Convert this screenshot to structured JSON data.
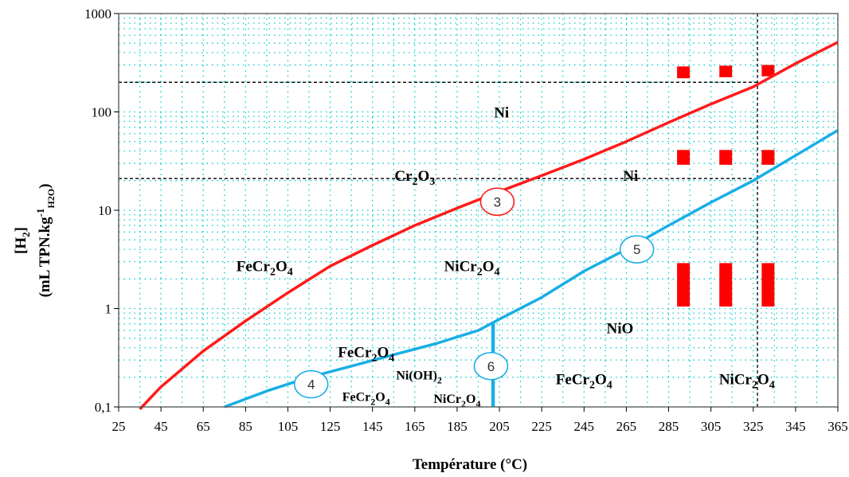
{
  "chart_data": {
    "type": "line",
    "xlabel": "Température (°C)",
    "ylabel_main": "[H",
    "ylabel_main_sub": "2",
    "ylabel_main_end": "]",
    "ylabel_units": "(mL TPN.kg",
    "ylabel_units_sup": "-1",
    "ylabel_units_sub": "H2O",
    "ylabel_units_end": ")",
    "y_scale": "log",
    "xlim": [
      25,
      365
    ],
    "ylim": [
      0.1,
      1000
    ],
    "grid": true,
    "grid_color": "#00cccc",
    "x_ticks": [
      "25",
      "45",
      "65",
      "85",
      "105",
      "125",
      "145",
      "165",
      "185",
      "205",
      "225",
      "245",
      "265",
      "285",
      "305",
      "325",
      "345",
      "365"
    ],
    "y_ticks": [
      {
        "value": 1000,
        "label": "1000"
      },
      {
        "value": 100,
        "label": "100"
      },
      {
        "value": 10,
        "label": "10"
      },
      {
        "value": 1,
        "label": "1"
      },
      {
        "value": 0.1,
        "label": "0,1"
      }
    ],
    "series": [
      {
        "color": "#ff1a1a",
        "x": [
          35,
          45,
          65,
          85,
          105,
          125,
          145,
          165,
          185,
          205,
          225,
          245,
          265,
          285,
          305,
          325,
          345,
          365
        ],
        "y": [
          0.095,
          0.16,
          0.37,
          0.75,
          1.45,
          2.7,
          4.4,
          7.0,
          10.5,
          15.5,
          22.5,
          33,
          50,
          78,
          120,
          180,
          310,
          510
        ]
      },
      {
        "color": "#1aaee6",
        "x": [
          75,
          95,
          115,
          135,
          155,
          175,
          195,
          205,
          225,
          245,
          265,
          285,
          305,
          325,
          345,
          365
        ],
        "y": [
          0.1,
          0.145,
          0.2,
          0.26,
          0.34,
          0.44,
          0.6,
          0.78,
          1.3,
          2.4,
          4.0,
          7.0,
          12,
          20,
          36,
          65
        ]
      }
    ],
    "vertical_segment": {
      "color": "#1aaee6",
      "x": 202,
      "y_from": 0.1,
      "y_to": 0.72
    },
    "dashed_lines": [
      {
        "kind": "h",
        "y": 200,
        "x_from": 25,
        "x_to": 327
      },
      {
        "kind": "h",
        "y": 21,
        "x_from": 25,
        "x_to": 327
      },
      {
        "kind": "v",
        "x": 327,
        "y_from": 0.1,
        "y_to": 1000
      }
    ],
    "markers": [
      {
        "x": 292,
        "y_from": 220,
        "y_to": 290
      },
      {
        "x": 312,
        "y_from": 225,
        "y_to": 295
      },
      {
        "x": 332,
        "y_from": 230,
        "y_to": 300
      },
      {
        "x": 292,
        "y_from": 29,
        "y_to": 41
      },
      {
        "x": 312,
        "y_from": 29,
        "y_to": 41
      },
      {
        "x": 332,
        "y_from": 29,
        "y_to": 41
      },
      {
        "x": 292,
        "y_from": 1.05,
        "y_to": 2.9
      },
      {
        "x": 312,
        "y_from": 1.05,
        "y_to": 2.9
      },
      {
        "x": 332,
        "y_from": 1.05,
        "y_to": 2.9
      }
    ],
    "marker_color": "#ff0000",
    "circles": [
      {
        "label": "3",
        "x": 204,
        "y": 12.2,
        "color": "#ff1a1a"
      },
      {
        "label": "4",
        "x": 116,
        "y": 0.17,
        "color": "#1aaee6"
      },
      {
        "label": "5",
        "x": 270,
        "y": 4.0,
        "color": "#1aaee6"
      },
      {
        "label": "6",
        "x": 201,
        "y": 0.26,
        "color": "#1aaee6"
      }
    ],
    "regions": [
      {
        "x": 206,
        "y": 88,
        "size": "lg",
        "parts": [
          {
            "t": "Ni"
          }
        ]
      },
      {
        "x": 165,
        "y": 20,
        "size": "lg",
        "parts": [
          {
            "t": "Cr"
          },
          {
            "t": "2",
            "s": "sub"
          },
          {
            "t": "O"
          },
          {
            "t": "3",
            "s": "sub"
          }
        ]
      },
      {
        "x": 267,
        "y": 20,
        "size": "lg",
        "parts": [
          {
            "t": "Ni"
          }
        ]
      },
      {
        "x": 94,
        "y": 2.4,
        "size": "lg",
        "parts": [
          {
            "t": "FeCr"
          },
          {
            "t": "2",
            "s": "sub"
          },
          {
            "t": "O"
          },
          {
            "t": "4",
            "s": "sub"
          }
        ]
      },
      {
        "x": 192,
        "y": 2.4,
        "size": "lg",
        "parts": [
          {
            "t": "NiCr"
          },
          {
            "t": "2",
            "s": "sub"
          },
          {
            "t": "O"
          },
          {
            "t": "4",
            "s": "sub"
          }
        ]
      },
      {
        "x": 262,
        "y": 0.56,
        "size": "lg",
        "parts": [
          {
            "t": "NiO"
          }
        ]
      },
      {
        "x": 142,
        "y": 0.32,
        "size": "lg",
        "parts": [
          {
            "t": "FeCr"
          },
          {
            "t": "2",
            "s": "sub"
          },
          {
            "t": "O"
          },
          {
            "t": "4",
            "s": "sub"
          }
        ]
      },
      {
        "x": 167,
        "y": 0.19,
        "size": "sm",
        "parts": [
          {
            "t": "Ni(OH)"
          },
          {
            "t": "2",
            "s": "sub"
          }
        ]
      },
      {
        "x": 142,
        "y": 0.115,
        "size": "sm",
        "parts": [
          {
            "t": "FeCr"
          },
          {
            "t": "2",
            "s": "sub"
          },
          {
            "t": "O"
          },
          {
            "t": "4",
            "s": "sub"
          }
        ]
      },
      {
        "x": 185,
        "y": 0.11,
        "size": "sm",
        "parts": [
          {
            "t": "NiCr"
          },
          {
            "t": "2",
            "s": "sub"
          },
          {
            "t": "O"
          },
          {
            "t": "4",
            "s": "sub"
          }
        ]
      },
      {
        "x": 245,
        "y": 0.17,
        "size": "lg",
        "parts": [
          {
            "t": "FeCr"
          },
          {
            "t": "2",
            "s": "sub"
          },
          {
            "t": "O"
          },
          {
            "t": "4",
            "s": "sub"
          }
        ]
      },
      {
        "x": 322,
        "y": 0.17,
        "size": "lg",
        "parts": [
          {
            "t": "NiCr"
          },
          {
            "t": "2",
            "s": "sub"
          },
          {
            "t": "O"
          },
          {
            "t": "4",
            "s": "sub"
          }
        ]
      }
    ]
  }
}
